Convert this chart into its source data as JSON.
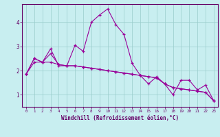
{
  "xlabel": "Windchill (Refroidissement éolien,°C)",
  "background_color": "#c8eef0",
  "line_color": "#990099",
  "grid_color": "#99cccc",
  "axis_color": "#660066",
  "tick_color": "#660066",
  "xlim": [
    -0.5,
    23.5
  ],
  "ylim": [
    0.5,
    4.75
  ],
  "yticks": [
    1,
    2,
    3,
    4
  ],
  "xticks": [
    0,
    1,
    2,
    3,
    4,
    5,
    6,
    7,
    8,
    9,
    10,
    11,
    12,
    13,
    14,
    15,
    16,
    17,
    18,
    19,
    20,
    21,
    22,
    23
  ],
  "line1_x": [
    0,
    1,
    2,
    3,
    4,
    5,
    6,
    7,
    8,
    9,
    10,
    11,
    12,
    13,
    14,
    15,
    16,
    17,
    18,
    19,
    20,
    21,
    22,
    23
  ],
  "line1_y": [
    1.85,
    2.5,
    2.35,
    2.9,
    2.2,
    2.2,
    3.05,
    2.8,
    4.0,
    4.3,
    4.55,
    3.9,
    3.5,
    2.3,
    1.8,
    1.45,
    1.75,
    1.45,
    1.0,
    1.6,
    1.6,
    1.2,
    1.4,
    0.75
  ],
  "line2_x": [
    0,
    1,
    2,
    3,
    4,
    5,
    6,
    7,
    8,
    9,
    10,
    11,
    12,
    13,
    14,
    15,
    16,
    17,
    18,
    19,
    20,
    21,
    22,
    23
  ],
  "line2_y": [
    1.85,
    2.35,
    2.35,
    2.7,
    2.25,
    2.2,
    2.2,
    2.15,
    2.1,
    2.05,
    2.0,
    1.95,
    1.9,
    1.85,
    1.8,
    1.75,
    1.7,
    1.45,
    1.3,
    1.25,
    1.2,
    1.15,
    1.1,
    0.75
  ],
  "line3_x": [
    0,
    1,
    2,
    3,
    4,
    5,
    6,
    7,
    8,
    9,
    10,
    11,
    12,
    13,
    14,
    15,
    16,
    17,
    18,
    19,
    20,
    21,
    22,
    23
  ],
  "line3_y": [
    1.85,
    2.5,
    2.35,
    2.35,
    2.25,
    2.2,
    2.2,
    2.15,
    2.1,
    2.05,
    2.0,
    1.95,
    1.9,
    1.85,
    1.8,
    1.75,
    1.7,
    1.45,
    1.3,
    1.25,
    1.2,
    1.15,
    1.1,
    0.75
  ]
}
